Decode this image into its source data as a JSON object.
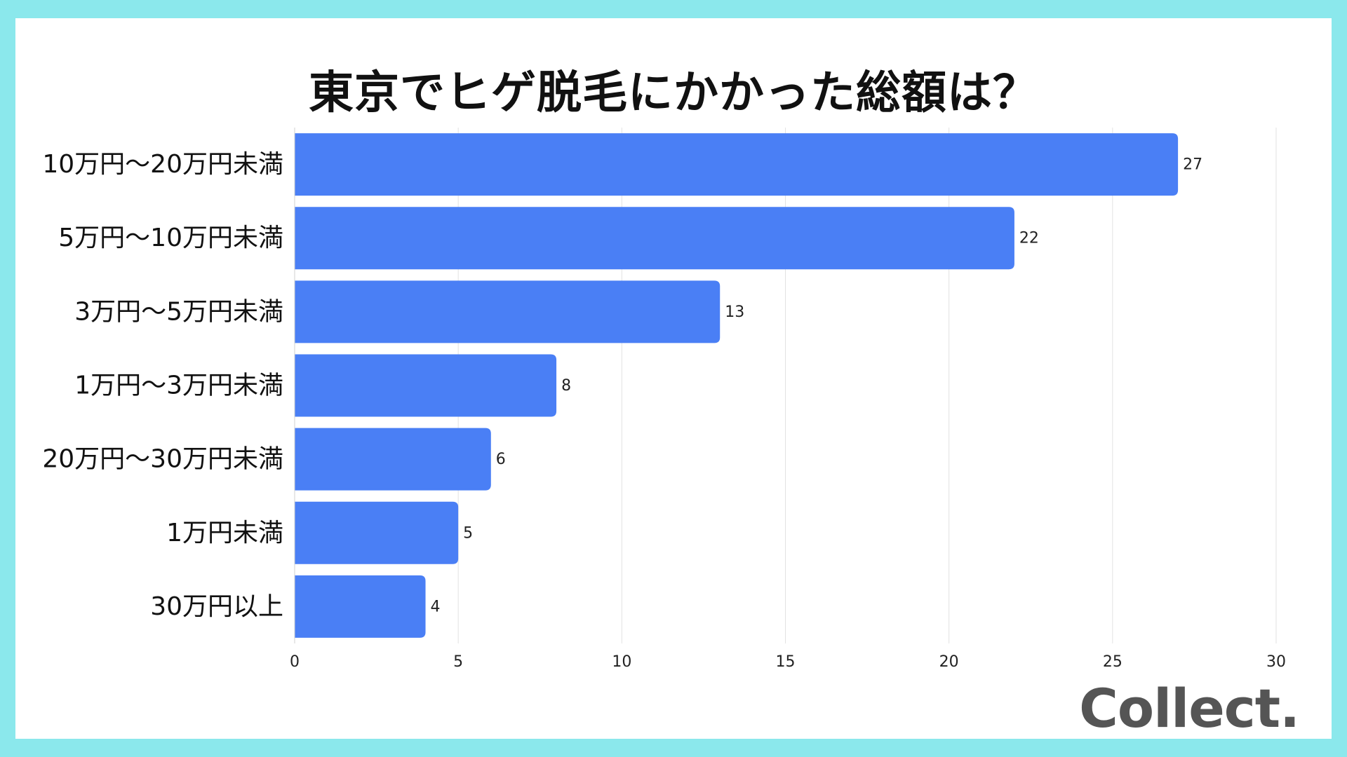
{
  "chart_data": {
    "type": "bar",
    "orientation": "horizontal",
    "title": "東京でヒゲ脱毛にかかった総額は？",
    "xlabel": "",
    "ylabel": "",
    "categories": [
      "10万円〜20万円未満",
      "5万円〜10万円未満",
      "3万円〜5万円未満",
      "1万円〜3万円未満",
      "20万円〜30万円未満",
      "1万円未満",
      "30万円以上"
    ],
    "values": [
      27,
      22,
      13,
      8,
      6,
      5,
      4
    ],
    "xlim": [
      0,
      30
    ],
    "xticks": [
      0,
      5,
      10,
      15,
      20,
      25,
      30
    ],
    "grid": "vertical",
    "bar_color": "#4a7ff5"
  },
  "branding": {
    "logo": "Collect."
  },
  "colors": {
    "border": "#8be8ec",
    "background": "#ffffff",
    "bar": "#4a7ff5",
    "grid": "#e2e2e2"
  }
}
